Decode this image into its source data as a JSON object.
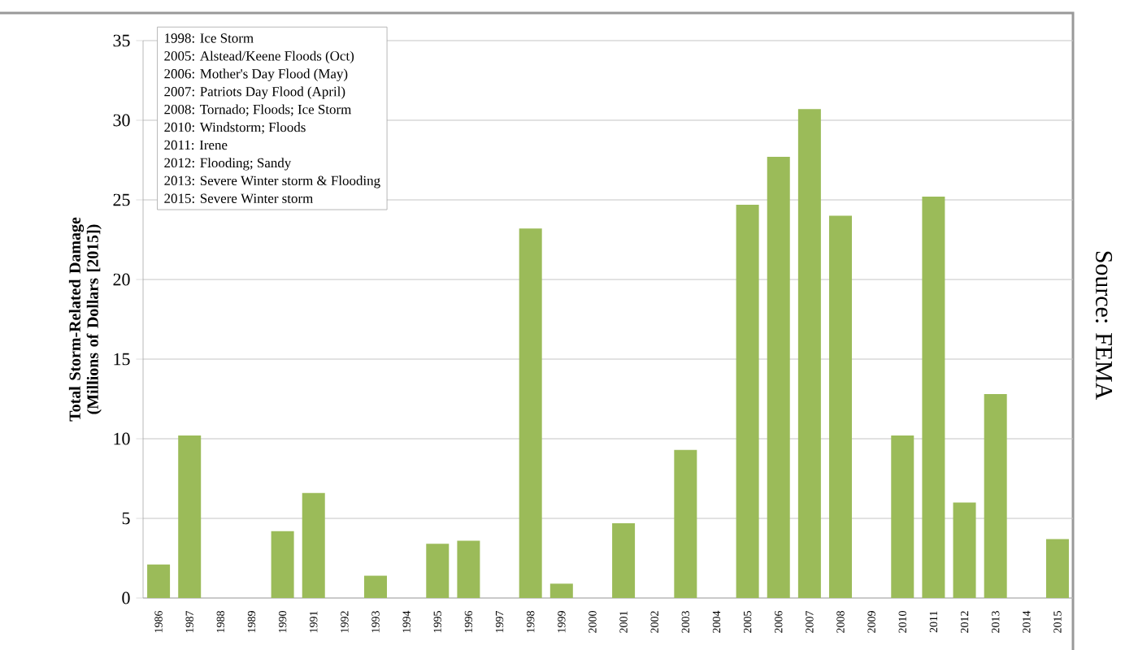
{
  "chart_data": {
    "type": "bar",
    "ylabel": "Total Storm-Related Damage (Millions of Dollars [2015])",
    "categories": [
      "1986",
      "1987",
      "1988",
      "1989",
      "1990",
      "1991",
      "1992",
      "1993",
      "1994",
      "1995",
      "1996",
      "1997",
      "1998",
      "1999",
      "2000",
      "2001",
      "2002",
      "2003",
      "2004",
      "2005",
      "2006",
      "2007",
      "2008",
      "2009",
      "2010",
      "2011",
      "2012",
      "2013",
      "2014",
      "2015"
    ],
    "values": [
      2.1,
      10.2,
      0,
      0,
      4.2,
      6.6,
      0,
      1.4,
      0,
      3.4,
      3.6,
      0,
      23.2,
      0.9,
      0,
      4.7,
      0,
      9.3,
      0,
      24.7,
      27.7,
      30.7,
      24.0,
      0,
      10.2,
      25.2,
      6.0,
      12.8,
      0,
      3.7
    ],
    "color": "#9bbb59",
    "ylim": [
      0,
      35
    ],
    "yticks": [
      0,
      5,
      10,
      15,
      20,
      25,
      30,
      35
    ],
    "grid": "y",
    "annotations": [
      "1998: Ice Storm",
      "2005: Alstead/Keene Floods (Oct)",
      "2006: Mother's Day Flood (May)",
      "2007: Patriots Day Flood (April)",
      "2008: Tornado; Floods; Ice Storm",
      "2010: Windstorm; Floods",
      "2011: Irene",
      "2012: Flooding; Sandy",
      "2013: Severe Winter storm & Flooding",
      "2015: Severe Winter storm",
      "Source: FEMA"
    ]
  }
}
